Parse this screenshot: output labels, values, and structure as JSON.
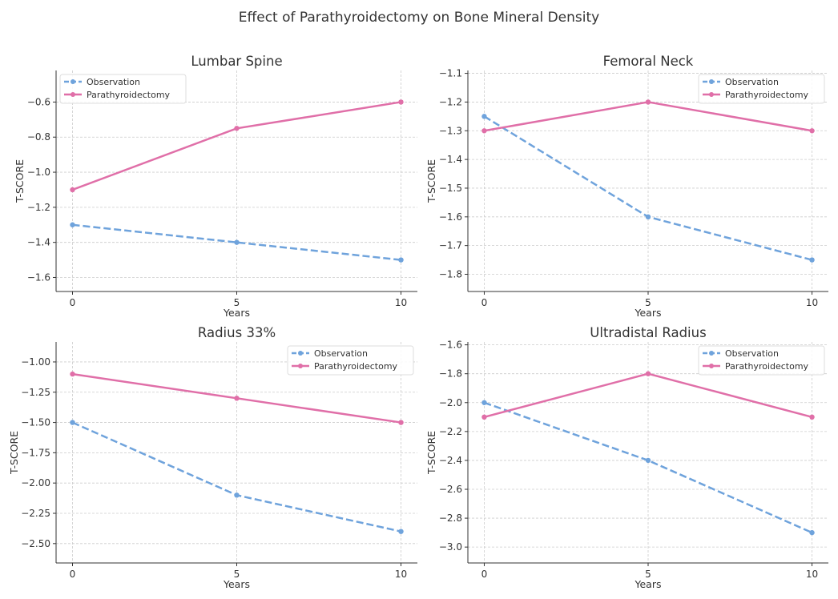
{
  "title": "Effect of Parathyroidectomy on Bone Mineral Density",
  "colors": {
    "Observation": "#6fa3dc",
    "Parathyroidectomy": "#e06fa8"
  },
  "chart_data": [
    {
      "type": "line",
      "title": "Lumbar Spine",
      "xlabel": "Years",
      "ylabel": "T-SCORE",
      "x": [
        0,
        5,
        10
      ],
      "xticks": [
        0,
        5,
        10
      ],
      "xlim": [
        -0.5,
        10.5
      ],
      "ylim": [
        -1.68,
        -0.42
      ],
      "yticks": [
        -1.6,
        -1.4,
        -1.2,
        -1.0,
        -0.8,
        -0.6
      ],
      "ytick_labels": [
        "−1.6",
        "−1.4",
        "−1.2",
        "−1.0",
        "−0.8",
        "−0.6"
      ],
      "grid": true,
      "legend": "upper-left",
      "series": [
        {
          "name": "Observation",
          "values": [
            -1.3,
            -1.4,
            -1.5
          ],
          "style": "dashed"
        },
        {
          "name": "Parathyroidectomy",
          "values": [
            -1.1,
            -0.75,
            -0.6
          ],
          "style": "solid"
        }
      ]
    },
    {
      "type": "line",
      "title": "Femoral Neck",
      "xlabel": "Years",
      "ylabel": "T-SCORE",
      "x": [
        0,
        5,
        10
      ],
      "xticks": [
        0,
        5,
        10
      ],
      "xlim": [
        -0.5,
        10.5
      ],
      "ylim": [
        -1.86,
        -1.09
      ],
      "yticks": [
        -1.8,
        -1.7,
        -1.6,
        -1.5,
        -1.4,
        -1.3,
        -1.2,
        -1.1
      ],
      "ytick_labels": [
        "−1.8",
        "−1.7",
        "−1.6",
        "−1.5",
        "−1.4",
        "−1.3",
        "−1.2",
        "−1.1"
      ],
      "grid": true,
      "legend": "upper-right",
      "series": [
        {
          "name": "Observation",
          "values": [
            -1.25,
            -1.6,
            -1.75
          ],
          "style": "dashed"
        },
        {
          "name": "Parathyroidectomy",
          "values": [
            -1.3,
            -1.2,
            -1.3
          ],
          "style": "solid"
        }
      ]
    },
    {
      "type": "line",
      "title": "Radius 33%",
      "xlabel": "Years",
      "ylabel": "T-SCORE",
      "x": [
        0,
        5,
        10
      ],
      "xticks": [
        0,
        5,
        10
      ],
      "xlim": [
        -0.5,
        10.5
      ],
      "ylim": [
        -2.66,
        -0.835
      ],
      "yticks": [
        -2.5,
        -2.25,
        -2.0,
        -1.75,
        -1.5,
        -1.25,
        -1.0
      ],
      "ytick_labels": [
        "−2.50",
        "−2.25",
        "−2.00",
        "−1.75",
        "−1.50",
        "−1.25",
        "−1.00"
      ],
      "grid": true,
      "legend": "upper-right",
      "series": [
        {
          "name": "Observation",
          "values": [
            -1.5,
            -2.1,
            -2.4
          ],
          "style": "dashed"
        },
        {
          "name": "Parathyroidectomy",
          "values": [
            -1.1,
            -1.3,
            -1.5
          ],
          "style": "solid"
        }
      ]
    },
    {
      "type": "line",
      "title": "Ultradistal Radius",
      "xlabel": "Years",
      "ylabel": "T-SCORE",
      "x": [
        0,
        5,
        10
      ],
      "xticks": [
        0,
        5,
        10
      ],
      "xlim": [
        -0.5,
        10.5
      ],
      "ylim": [
        -3.11,
        -1.58
      ],
      "yticks": [
        -3.0,
        -2.8,
        -2.6,
        -2.4,
        -2.2,
        -2.0,
        -1.8,
        -1.6
      ],
      "ytick_labels": [
        "−3.0",
        "−2.8",
        "−2.6",
        "−2.4",
        "−2.2",
        "−2.0",
        "−1.8",
        "−1.6"
      ],
      "grid": true,
      "legend": "upper-right",
      "series": [
        {
          "name": "Observation",
          "values": [
            -2.0,
            -2.4,
            -2.9
          ],
          "style": "dashed"
        },
        {
          "name": "Parathyroidectomy",
          "values": [
            -2.1,
            -1.8,
            -2.1
          ],
          "style": "solid"
        }
      ]
    }
  ]
}
